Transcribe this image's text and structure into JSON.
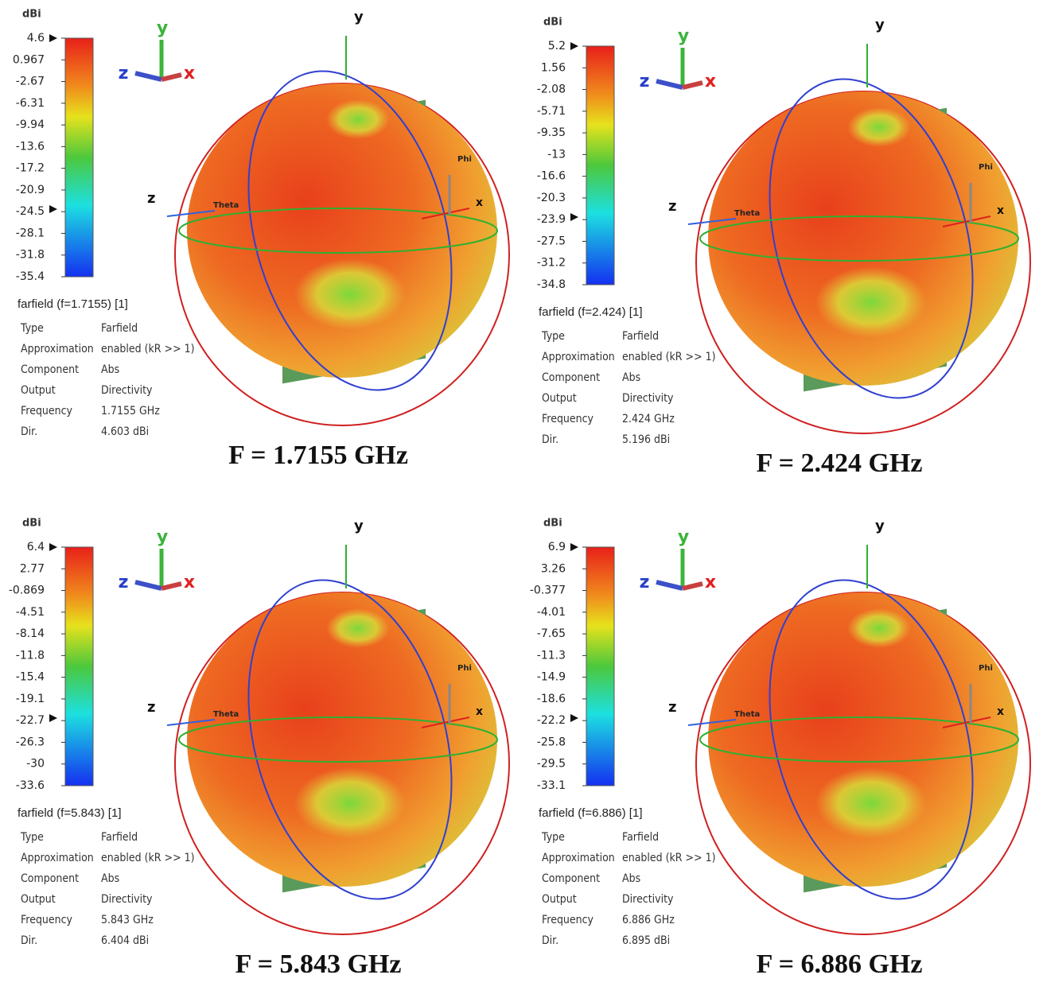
{
  "panels": [
    {
      "colorbar": {
        "unit": "dBi",
        "ticks": [
          "4.6",
          "0.967",
          "-2.67",
          "-6.31",
          "-9.94",
          "-13.6",
          "-17.2",
          "-20.9",
          "-24.5",
          "-28.1",
          "-31.8",
          "-35.4"
        ]
      },
      "triad": {
        "y": "y",
        "z": "z",
        "x": "x"
      },
      "axes": {
        "y": "y",
        "z": "z",
        "x": "x",
        "theta": "Theta",
        "phi": "Phi"
      },
      "legend": {
        "title": "farfield (f=1.7155) [1]",
        "rows": [
          [
            "Type",
            "Farfield"
          ],
          [
            "Approximation",
            "enabled (kR >> 1)"
          ],
          [
            "Component",
            "Abs"
          ],
          [
            "Output",
            "Directivity"
          ],
          [
            "Frequency",
            "1.7155 GHz"
          ],
          [
            "Dir.",
            "4.603 dBi"
          ]
        ]
      },
      "caption": "F = 1.7155 GHz"
    },
    {
      "colorbar": {
        "unit": "dBi",
        "ticks": [
          "5.2",
          "1.56",
          "-2.08",
          "-5.71",
          "-9.35",
          "-13",
          "-16.6",
          "-20.3",
          "-23.9",
          "-27.5",
          "-31.2",
          "-34.8"
        ]
      },
      "triad": {
        "y": "y",
        "z": "z",
        "x": "x"
      },
      "axes": {
        "y": "y",
        "z": "z",
        "x": "x",
        "theta": "Theta",
        "phi": "Phi"
      },
      "legend": {
        "title": "farfield (f=2.424) [1]",
        "rows": [
          [
            "Type",
            "Farfield"
          ],
          [
            "Approximation",
            "enabled (kR >> 1)"
          ],
          [
            "Component",
            "Abs"
          ],
          [
            "Output",
            "Directivity"
          ],
          [
            "Frequency",
            "2.424 GHz"
          ],
          [
            "Dir.",
            "5.196 dBi"
          ]
        ]
      },
      "caption": "F = 2.424 GHz"
    },
    {
      "colorbar": {
        "unit": "dBi",
        "ticks": [
          "6.4",
          "2.77",
          "-0.869",
          "-4.51",
          "-8.14",
          "-11.8",
          "-15.4",
          "-19.1",
          "-22.7",
          "-26.3",
          "-30",
          "-33.6"
        ]
      },
      "triad": {
        "y": "y",
        "z": "z",
        "x": "x"
      },
      "axes": {
        "y": "y",
        "z": "z",
        "x": "x",
        "theta": "Theta",
        "phi": "Phi"
      },
      "legend": {
        "title": "farfield (f=5.843) [1]",
        "rows": [
          [
            "Type",
            "Farfield"
          ],
          [
            "Approximation",
            "enabled (kR >> 1)"
          ],
          [
            "Component",
            "Abs"
          ],
          [
            "Output",
            "Directivity"
          ],
          [
            "Frequency",
            "5.843 GHz"
          ],
          [
            "Dir.",
            "6.404 dBi"
          ]
        ]
      },
      "caption": "F = 5.843 GHz"
    },
    {
      "colorbar": {
        "unit": "dBi",
        "ticks": [
          "6.9",
          "3.26",
          "-0.377",
          "-4.01",
          "-7.65",
          "-11.3",
          "-14.9",
          "-18.6",
          "-22.2",
          "-25.8",
          "-29.5",
          "-33.1"
        ]
      },
      "triad": {
        "y": "y",
        "z": "z",
        "x": "x"
      },
      "axes": {
        "y": "y",
        "z": "z",
        "x": "x",
        "theta": "Theta",
        "phi": "Phi"
      },
      "legend": {
        "title": "farfield (f=6.886) [1]",
        "rows": [
          [
            "Type",
            "Farfield"
          ],
          [
            "Approximation",
            "enabled (kR >> 1)"
          ],
          [
            "Component",
            "Abs"
          ],
          [
            "Output",
            "Directivity"
          ],
          [
            "Frequency",
            "6.886 GHz"
          ],
          [
            "Dir.",
            "6.895 dBi"
          ]
        ]
      },
      "caption": "F = 6.886 GHz"
    }
  ]
}
